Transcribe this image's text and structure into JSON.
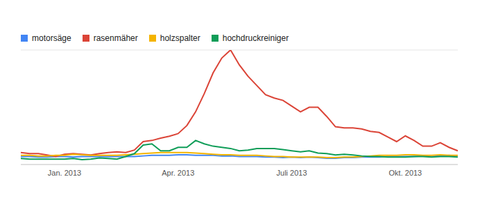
{
  "chart_data": {
    "type": "line",
    "legend": "top-left",
    "grid": true,
    "tick_labels": "x",
    "ylim": [
      0,
      100
    ],
    "yticks": [
      0,
      20,
      40,
      60,
      80,
      100
    ],
    "categories": [
      null,
      null,
      null,
      null,
      null,
      "Jan. 2013",
      null,
      null,
      null,
      null,
      null,
      null,
      null,
      null,
      null,
      null,
      null,
      null,
      "Apr. 2013",
      null,
      null,
      null,
      null,
      null,
      null,
      null,
      null,
      null,
      null,
      null,
      null,
      "Juli 2013",
      null,
      null,
      null,
      null,
      null,
      null,
      null,
      null,
      null,
      null,
      null,
      null,
      "Okt. 2013",
      null,
      null,
      null,
      null,
      null,
      null
    ],
    "series": [
      {
        "name": "motorsäge",
        "color": "#4285f4",
        "values": [
          7,
          7,
          6.5,
          6.5,
          7,
          7,
          6.5,
          7,
          7,
          7,
          7,
          7,
          7,
          7,
          7.5,
          8,
          8,
          8,
          8.5,
          8.5,
          8,
          8,
          8,
          7.5,
          7.5,
          7,
          7,
          7,
          6.5,
          6.5,
          6,
          6.5,
          6,
          6.5,
          6,
          5.5,
          5.5,
          6,
          6,
          6.5,
          6.5,
          6.5,
          7,
          7,
          7,
          7,
          7.5,
          7,
          7.5,
          8,
          7.5
        ]
      },
      {
        "name": "rasenmäher",
        "color": "#db4437",
        "values": [
          10.5,
          9.5,
          9.5,
          8.4,
          7,
          9,
          9.5,
          9,
          8.4,
          9.5,
          10.5,
          11,
          10.5,
          12.6,
          20,
          21,
          23,
          24.7,
          27,
          34,
          46,
          62,
          80,
          93,
          100,
          87,
          77,
          69,
          61,
          58,
          56,
          51,
          46,
          50,
          50,
          42,
          33,
          32,
          32,
          31,
          29,
          28,
          24,
          20,
          25,
          21,
          16,
          16,
          19,
          15,
          12
        ]
      },
      {
        "name": "holzspalter",
        "color": "#f4b400",
        "values": [
          8,
          8,
          7.5,
          7.5,
          8,
          8,
          9,
          8.5,
          8,
          8,
          8,
          8,
          8.5,
          9,
          9.5,
          10,
          10.5,
          10.5,
          10.5,
          10.5,
          10,
          9.5,
          9,
          8.5,
          8.5,
          8,
          8,
          8,
          7.5,
          7,
          7,
          6.5,
          6.5,
          6.5,
          6.5,
          6,
          6,
          6.5,
          6.5,
          7,
          7.5,
          8,
          8,
          8,
          8.5,
          8.5,
          8,
          8,
          8.5,
          8,
          8
        ]
      },
      {
        "name": "hochdruckreiniger",
        "color": "#0f9d58",
        "values": [
          5.3,
          4.7,
          4.7,
          4.7,
          4.7,
          4.7,
          5.3,
          4.2,
          4.7,
          5.8,
          5.3,
          4.7,
          7,
          9.5,
          17,
          18,
          12,
          12,
          15,
          15,
          21,
          18,
          16,
          15,
          14,
          12,
          12.6,
          14,
          14,
          14,
          13,
          12,
          11,
          12,
          10,
          9.5,
          8.4,
          9,
          8.4,
          7.5,
          7,
          7,
          6.5,
          6.5,
          6.5,
          7,
          7,
          6.5,
          7,
          7,
          6.5
        ]
      }
    ]
  }
}
